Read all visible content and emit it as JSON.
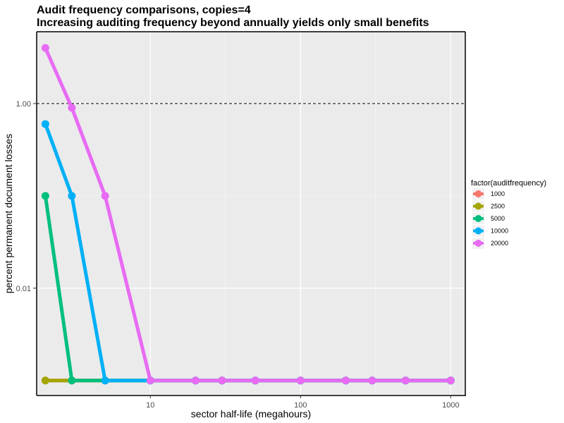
{
  "chart_data": {
    "type": "line",
    "title": "Audit frequency comparisons, copies=4",
    "subtitle": "Increasing auditing frequency beyond annually yields only small benefits",
    "xlabel": "sector half-life (megahours)",
    "ylabel": "percent permanent document losses",
    "x_scale": "log",
    "y_scale": "log",
    "xlim": [
      1.75,
      1250
    ],
    "ylim": [
      0.0007,
      6
    ],
    "x_ticks": [
      {
        "value": 10,
        "label": "10"
      },
      {
        "value": 100,
        "label": "100"
      },
      {
        "value": 1000,
        "label": "1000"
      }
    ],
    "y_ticks": [
      {
        "value": 0.01,
        "label": "0.01"
      },
      {
        "value": 1,
        "label": "1.00"
      }
    ],
    "grid": true,
    "reference_line": {
      "y": 1,
      "style": "dashed"
    },
    "legend": {
      "title": "factor(auditfrequency)",
      "position": "right",
      "entries": [
        "1000",
        "2500",
        "5000",
        "10000",
        "20000"
      ]
    },
    "series": [
      {
        "name": "1000",
        "color": "#F8766D",
        "x": [
          2,
          3,
          5,
          10,
          20,
          30,
          50,
          100,
          200,
          300,
          500,
          1000
        ],
        "y": [
          0.001,
          0.001,
          0.001,
          0.001,
          0.001,
          0.001,
          0.001,
          0.001,
          0.001,
          0.001,
          0.001,
          0.001
        ]
      },
      {
        "name": "2500",
        "color": "#A3A500",
        "x": [
          2,
          3,
          5,
          10,
          20,
          30,
          50,
          100,
          200,
          300,
          500,
          1000
        ],
        "y": [
          0.001,
          0.001,
          0.001,
          0.001,
          0.001,
          0.001,
          0.001,
          0.001,
          0.001,
          0.001,
          0.001,
          0.001
        ]
      },
      {
        "name": "5000",
        "color": "#00BF7D",
        "x": [
          2,
          3,
          5,
          10,
          20,
          30,
          50,
          100,
          200,
          300,
          500,
          1000
        ],
        "y": [
          0.1,
          0.001,
          0.001,
          0.001,
          0.001,
          0.001,
          0.001,
          0.001,
          0.001,
          0.001,
          0.001,
          0.001
        ]
      },
      {
        "name": "10000",
        "color": "#00B0F6",
        "x": [
          2,
          3,
          5,
          10,
          20,
          30,
          50,
          100,
          200,
          300,
          500,
          1000
        ],
        "y": [
          0.6,
          0.1,
          0.001,
          0.001,
          0.001,
          0.001,
          0.001,
          0.001,
          0.001,
          0.001,
          0.001,
          0.001
        ]
      },
      {
        "name": "20000",
        "color": "#E76BF3",
        "x": [
          2,
          3,
          5,
          10,
          20,
          30,
          50,
          100,
          200,
          300,
          500,
          1000
        ],
        "y": [
          4,
          0.9,
          0.1,
          0.001,
          0.001,
          0.001,
          0.001,
          0.001,
          0.001,
          0.001,
          0.001,
          0.001
        ]
      }
    ]
  }
}
